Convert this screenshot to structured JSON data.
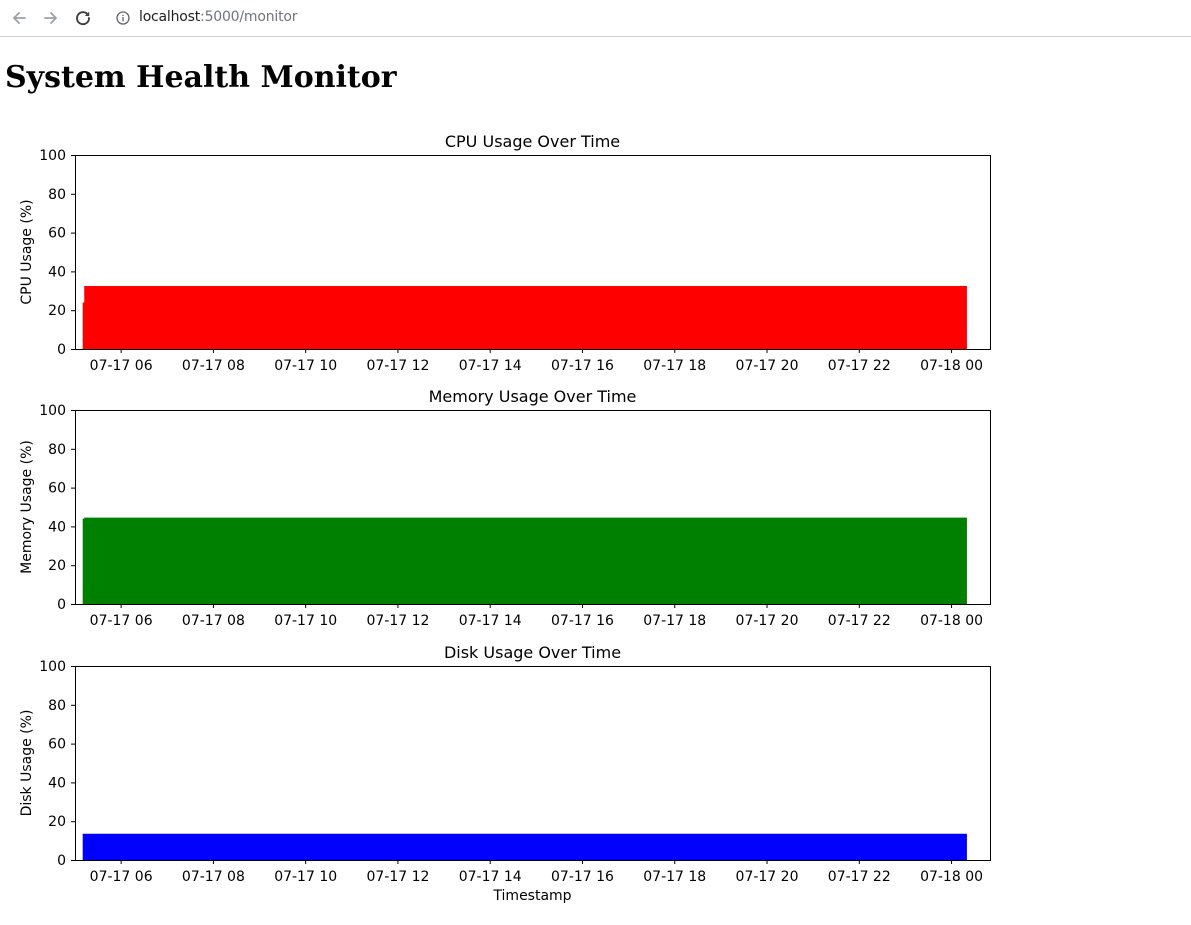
{
  "browser": {
    "url_host": "localhost",
    "url_path": ":5000/monitor"
  },
  "page": {
    "title": "System Health Monitor"
  },
  "icons": {
    "back": "arrow-left-icon",
    "forward": "arrow-right-icon",
    "reload": "reload-icon",
    "site_info": "info-circle-icon"
  },
  "chart_data": [
    {
      "type": "bar",
      "title": "CPU Usage Over Time",
      "xlabel": "",
      "ylabel": "CPU Usage (%)",
      "color": "#ff0000",
      "ylim": [
        0,
        100
      ],
      "yticks": [
        0,
        20,
        40,
        60,
        80,
        100
      ],
      "xlim": [
        "2024-07-17 05:00",
        "2024-07-18 00:50"
      ],
      "xtick_labels": [
        "07-17 06",
        "07-17 08",
        "07-17 10",
        "07-17 12",
        "07-17 14",
        "07-17 16",
        "07-17 18",
        "07-17 20",
        "07-17 22",
        "07-18 00"
      ],
      "x_range": [
        "2024-07-17 05:10",
        "2024-07-18 00:20"
      ],
      "values": [
        {
          "x": "2024-07-17 05:10",
          "y": 24
        },
        {
          "x": "2024-07-17 05:12",
          "y": 32.5
        },
        {
          "x": "2024-07-18 00:20",
          "y": 32.5
        }
      ],
      "grid": false
    },
    {
      "type": "bar",
      "title": "Memory Usage Over Time",
      "xlabel": "",
      "ylabel": "Memory Usage (%)",
      "color": "#008000",
      "ylim": [
        0,
        100
      ],
      "yticks": [
        0,
        20,
        40,
        60,
        80,
        100
      ],
      "xlim": [
        "2024-07-17 05:00",
        "2024-07-18 00:50"
      ],
      "xtick_labels": [
        "07-17 06",
        "07-17 08",
        "07-17 10",
        "07-17 12",
        "07-17 14",
        "07-17 16",
        "07-17 18",
        "07-17 20",
        "07-17 22",
        "07-18 00"
      ],
      "x_range": [
        "2024-07-17 05:10",
        "2024-07-18 00:20"
      ],
      "values": [
        {
          "x": "2024-07-17 05:10",
          "y": 44
        },
        {
          "x": "2024-07-17 05:12",
          "y": 44.5
        },
        {
          "x": "2024-07-18 00:20",
          "y": 44.5
        }
      ],
      "grid": false
    },
    {
      "type": "bar",
      "title": "Disk Usage Over Time",
      "xlabel": "Timestamp",
      "ylabel": "Disk Usage (%)",
      "color": "#0000ff",
      "ylim": [
        0,
        100
      ],
      "yticks": [
        0,
        20,
        40,
        60,
        80,
        100
      ],
      "xlim": [
        "2024-07-17 05:00",
        "2024-07-18 00:50"
      ],
      "xtick_labels": [
        "07-17 06",
        "07-17 08",
        "07-17 10",
        "07-17 12",
        "07-17 14",
        "07-17 16",
        "07-17 18",
        "07-17 20",
        "07-17 22",
        "07-18 00"
      ],
      "x_range": [
        "2024-07-17 05:10",
        "2024-07-18 00:20"
      ],
      "values": [
        {
          "x": "2024-07-17 05:10",
          "y": 13.5
        },
        {
          "x": "2024-07-18 00:20",
          "y": 13.5
        }
      ],
      "grid": false
    }
  ]
}
